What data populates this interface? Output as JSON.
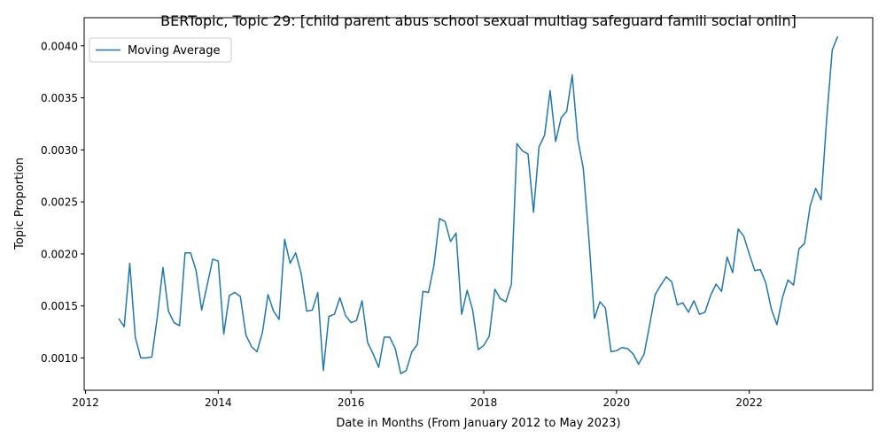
{
  "chart_data": {
    "type": "line",
    "title": "BERTopic, Topic 29: [child parent abus school sexual multiag safeguard famili social onlin]",
    "xlabel": "Date in Months (From January 2012 to May 2023)",
    "ylabel": "Topic Proportion",
    "xlim": [
      2011.98,
      2023.86
    ],
    "ylim": [
      0.00069,
      0.00427
    ],
    "x_ticks": [
      "2012",
      "2014",
      "2016",
      "2018",
      "2020",
      "2022"
    ],
    "x_tick_values": [
      2012,
      2014,
      2016,
      2018,
      2020,
      2022
    ],
    "y_ticks": [
      "0.0010",
      "0.0015",
      "0.0020",
      "0.0025",
      "0.0030",
      "0.0035",
      "0.0040"
    ],
    "y_tick_values": [
      0.001,
      0.0015,
      0.002,
      0.0025,
      0.003,
      0.0035,
      0.004
    ],
    "legend_position": "top-left",
    "grid": false,
    "series": [
      {
        "name": "Moving Average",
        "color": "#1f77b4",
        "x": [
          2012.5,
          2012.583,
          2012.667,
          2012.75,
          2012.833,
          2012.917,
          2013.0,
          2013.083,
          2013.167,
          2013.25,
          2013.333,
          2013.417,
          2013.5,
          2013.583,
          2013.667,
          2013.75,
          2013.833,
          2013.917,
          2014.0,
          2014.083,
          2014.167,
          2014.25,
          2014.333,
          2014.417,
          2014.5,
          2014.583,
          2014.667,
          2014.75,
          2014.833,
          2014.917,
          2015.0,
          2015.083,
          2015.167,
          2015.25,
          2015.333,
          2015.417,
          2015.5,
          2015.583,
          2015.667,
          2015.75,
          2015.833,
          2015.917,
          2016.0,
          2016.083,
          2016.167,
          2016.25,
          2016.333,
          2016.417,
          2016.5,
          2016.583,
          2016.667,
          2016.75,
          2016.833,
          2016.917,
          2017.0,
          2017.083,
          2017.167,
          2017.25,
          2017.333,
          2017.417,
          2017.5,
          2017.583,
          2017.667,
          2017.75,
          2017.833,
          2017.917,
          2018.0,
          2018.083,
          2018.167,
          2018.25,
          2018.333,
          2018.417,
          2018.5,
          2018.583,
          2018.667,
          2018.75,
          2018.833,
          2018.917,
          2019.0,
          2019.083,
          2019.167,
          2019.25,
          2019.333,
          2019.417,
          2019.5,
          2019.583,
          2019.667,
          2019.75,
          2019.833,
          2019.917,
          2020.0,
          2020.083,
          2020.167,
          2020.25,
          2020.333,
          2020.417,
          2020.5,
          2020.583,
          2020.667,
          2020.75,
          2020.833,
          2020.917,
          2021.0,
          2021.083,
          2021.167,
          2021.25,
          2021.333,
          2021.417,
          2021.5,
          2021.583,
          2021.667,
          2021.75,
          2021.833,
          2021.917,
          2022.0,
          2022.083,
          2022.167,
          2022.25,
          2022.333,
          2022.417,
          2022.5,
          2022.583,
          2022.667,
          2022.75,
          2022.833,
          2022.917,
          2023.0,
          2023.083,
          2023.167,
          2023.25,
          2023.333
        ],
        "y": [
          0.00138,
          0.0013,
          0.00191,
          0.0012,
          0.001,
          0.001,
          0.00101,
          0.0014,
          0.00187,
          0.00145,
          0.00134,
          0.00131,
          0.00201,
          0.00201,
          0.00184,
          0.00146,
          0.0017,
          0.00195,
          0.00193,
          0.00123,
          0.0016,
          0.00163,
          0.00159,
          0.00122,
          0.00111,
          0.00106,
          0.00125,
          0.00161,
          0.00145,
          0.00137,
          0.00214,
          0.00191,
          0.00201,
          0.00181,
          0.00145,
          0.00146,
          0.00163,
          0.00088,
          0.0014,
          0.00142,
          0.00158,
          0.00141,
          0.00134,
          0.00136,
          0.00155,
          0.00115,
          0.00104,
          0.00091,
          0.0012,
          0.0012,
          0.00109,
          0.00085,
          0.00088,
          0.00106,
          0.00113,
          0.00164,
          0.00163,
          0.00189,
          0.00234,
          0.00231,
          0.00212,
          0.0022,
          0.00142,
          0.00165,
          0.00146,
          0.00108,
          0.00112,
          0.00121,
          0.00166,
          0.00157,
          0.00154,
          0.00171,
          0.00306,
          0.00299,
          0.00296,
          0.0024,
          0.00303,
          0.00314,
          0.00357,
          0.00308,
          0.00331,
          0.00337,
          0.00372,
          0.0031,
          0.00282,
          0.00216,
          0.00138,
          0.00154,
          0.00148,
          0.00106,
          0.00107,
          0.0011,
          0.00109,
          0.00104,
          0.00094,
          0.00104,
          0.00132,
          0.00161,
          0.0017,
          0.00178,
          0.00173,
          0.00151,
          0.00153,
          0.00144,
          0.00155,
          0.00142,
          0.00144,
          0.0016,
          0.00171,
          0.00164,
          0.00197,
          0.00182,
          0.00224,
          0.00217,
          0.002,
          0.00184,
          0.00185,
          0.00172,
          0.00147,
          0.00132,
          0.00158,
          0.00175,
          0.0017,
          0.00205,
          0.0021,
          0.00246,
          0.00263,
          0.00252,
          0.0033,
          0.00396,
          0.00409
        ]
      }
    ]
  }
}
